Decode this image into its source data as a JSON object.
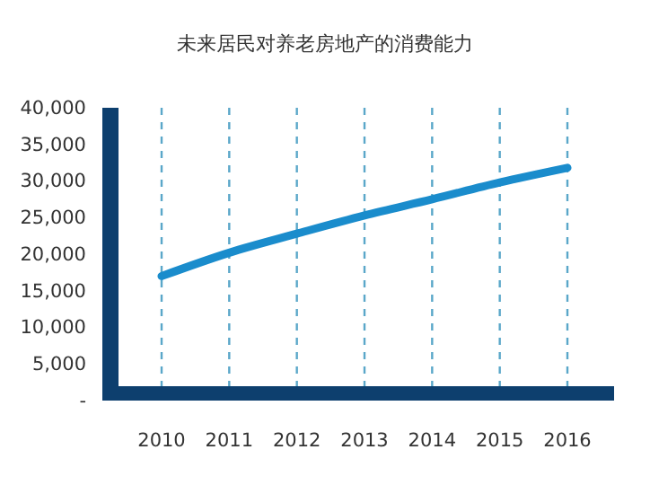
{
  "chart_data": {
    "type": "line",
    "title": "未来居民对养老房地产的消费能力",
    "categories": [
      "2010",
      "2011",
      "2012",
      "2013",
      "2014",
      "2015",
      "2016"
    ],
    "series": [
      {
        "color": "#1a8ccc",
        "values": [
          17000,
          20200,
          22800,
          25300,
          27500,
          29800,
          31800
        ]
      }
    ],
    "ylim": [
      0,
      40000
    ],
    "yticks": [
      {
        "value": 0,
        "label": "-"
      },
      {
        "value": 5000,
        "label": "5,000"
      },
      {
        "value": 10000,
        "label": "10,000"
      },
      {
        "value": 15000,
        "label": "15,000"
      },
      {
        "value": 20000,
        "label": "20,000"
      },
      {
        "value": 25000,
        "label": "25,000"
      },
      {
        "value": 30000,
        "label": "30,000"
      },
      {
        "value": 35000,
        "label": "35,000"
      },
      {
        "value": 40000,
        "label": "40,000"
      }
    ],
    "grid": "x",
    "marker": "none",
    "line_style": "solid"
  }
}
